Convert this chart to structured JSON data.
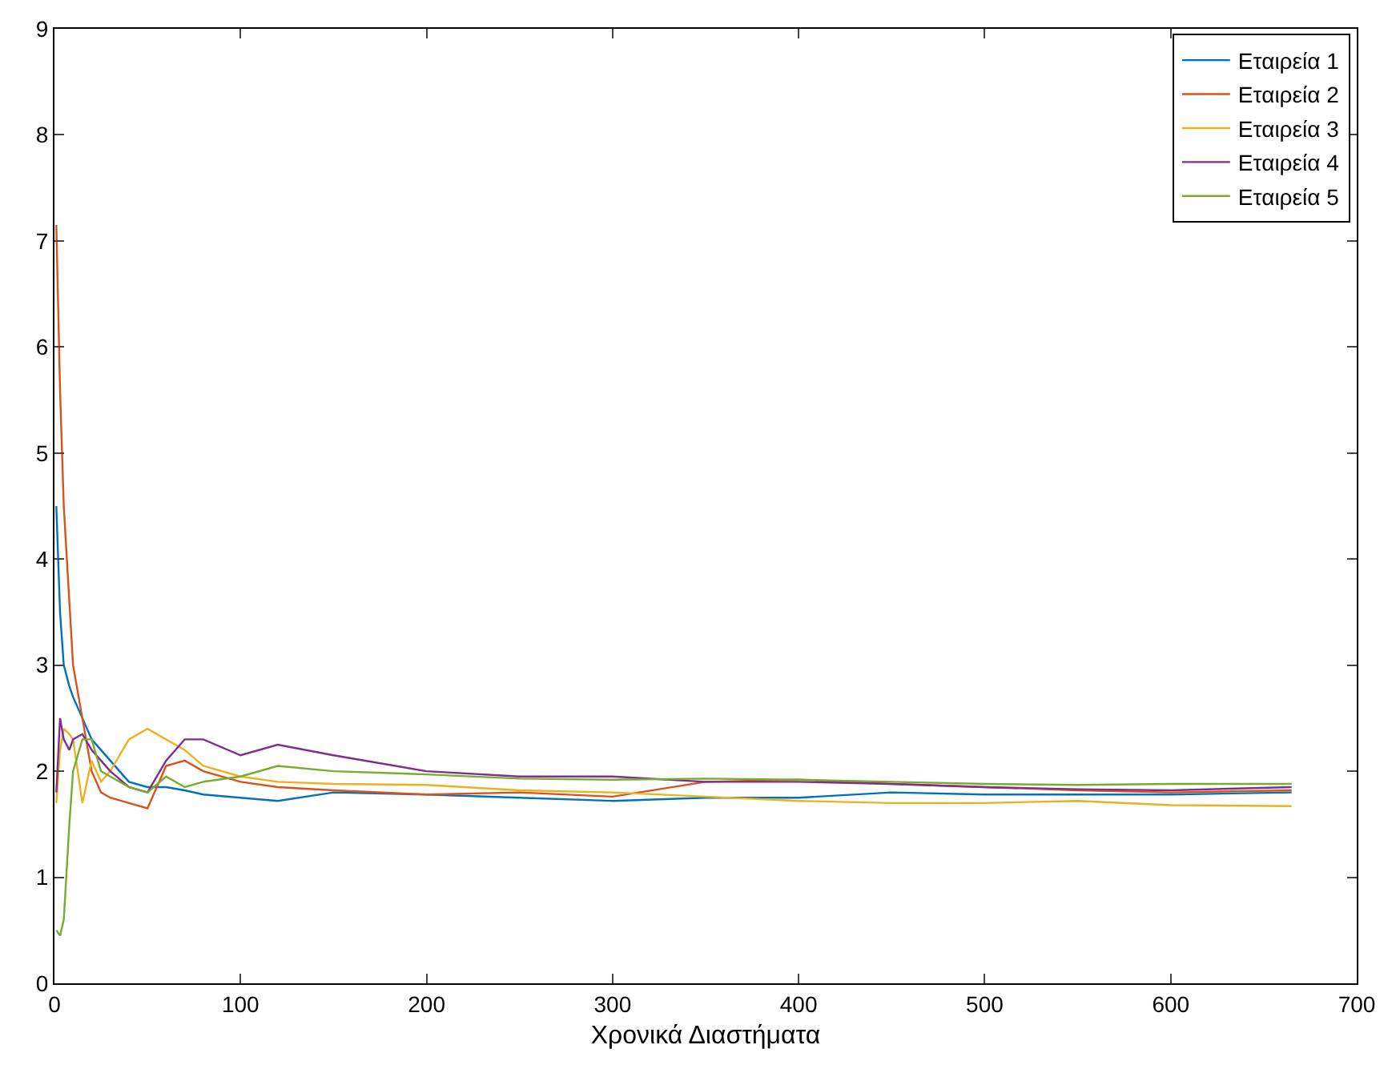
{
  "chart_data": {
    "type": "line",
    "xlabel": "Χρονικά Διαστήματα",
    "xlim": [
      0,
      700
    ],
    "ylim": [
      0,
      9
    ],
    "xticks": [
      0,
      100,
      200,
      300,
      400,
      500,
      600,
      700
    ],
    "yticks": [
      0,
      1,
      2,
      3,
      4,
      5,
      6,
      7,
      8,
      9
    ],
    "grid": false,
    "legend": "top right",
    "marker": "none",
    "line_style": "solid",
    "x": [
      1,
      3,
      5,
      8,
      10,
      15,
      20,
      25,
      30,
      40,
      50,
      60,
      70,
      80,
      100,
      120,
      150,
      200,
      250,
      300,
      350,
      400,
      450,
      500,
      550,
      600,
      665
    ],
    "series": [
      {
        "name": "Εταιρεία 1",
        "color": "#0072bd",
        "values": [
          4.5,
          3.5,
          3.0,
          2.8,
          2.7,
          2.5,
          2.3,
          2.2,
          2.1,
          1.9,
          1.85,
          1.85,
          1.82,
          1.78,
          1.75,
          1.72,
          1.8,
          1.78,
          1.75,
          1.72,
          1.75,
          1.75,
          1.8,
          1.78,
          1.78,
          1.78,
          1.8
        ]
      },
      {
        "name": "Εταιρεία 2",
        "color": "#d95319",
        "values": [
          7.15,
          5.6,
          4.5,
          3.6,
          3.0,
          2.5,
          2.0,
          1.8,
          1.75,
          1.7,
          1.65,
          2.05,
          2.1,
          2.0,
          1.9,
          1.85,
          1.82,
          1.78,
          1.8,
          1.76,
          1.9,
          1.92,
          1.88,
          1.85,
          1.82,
          1.8,
          1.82
        ]
      },
      {
        "name": "Εταιρεία 3",
        "color": "#edb120",
        "values": [
          1.7,
          2.2,
          2.4,
          2.35,
          2.3,
          1.7,
          2.1,
          1.9,
          2.0,
          2.3,
          2.4,
          2.3,
          2.2,
          2.05,
          1.95,
          1.9,
          1.88,
          1.87,
          1.82,
          1.8,
          1.76,
          1.72,
          1.7,
          1.7,
          1.72,
          1.68,
          1.67
        ]
      },
      {
        "name": "Εταιρεία 4",
        "color": "#7e2f8e",
        "values": [
          1.8,
          2.5,
          2.3,
          2.2,
          2.3,
          2.35,
          2.2,
          2.1,
          2.0,
          1.85,
          1.8,
          2.1,
          2.3,
          2.3,
          2.15,
          2.25,
          2.15,
          2.0,
          1.95,
          1.95,
          1.9,
          1.9,
          1.88,
          1.85,
          1.83,
          1.82,
          1.85
        ]
      },
      {
        "name": "Εταιρεία 5",
        "color": "#77ac30",
        "values": [
          0.5,
          0.45,
          0.6,
          1.5,
          2.0,
          2.3,
          2.3,
          2.0,
          1.95,
          1.85,
          1.8,
          1.95,
          1.85,
          1.9,
          1.95,
          2.05,
          2.0,
          1.97,
          1.93,
          1.92,
          1.93,
          1.92,
          1.9,
          1.88,
          1.87,
          1.88,
          1.88
        ]
      }
    ]
  }
}
